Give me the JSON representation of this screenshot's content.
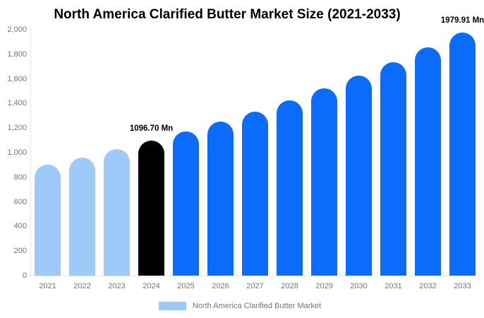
{
  "title": "North America Clarified Butter Market Size (2021-2033)",
  "legend": {
    "label": "North America Clarified Butter Market",
    "swatch_color": "#9ECAF9"
  },
  "colors": {
    "light_blue_bar": "#9ECAF9",
    "highlight_bar": "#000000",
    "blue_bar": "#0B6CFB",
    "axis_line": "#E3E3E3",
    "tick_text": "#757575",
    "data_label_text": "#000000",
    "background": "#FFFFFF"
  },
  "chart_data": {
    "type": "bar",
    "title": "North America Clarified Butter Market Size (2021-2033)",
    "categories": [
      "2021",
      "2022",
      "2023",
      "2024",
      "2025",
      "2026",
      "2027",
      "2028",
      "2029",
      "2030",
      "2031",
      "2032",
      "2033"
    ],
    "values": [
      900.2,
      961.3,
      1026.6,
      1096.7,
      1171.1,
      1250.6,
      1335.5,
      1426.1,
      1522.9,
      1626.2,
      1736.6,
      1854.4,
      1979.91
    ],
    "unit": "Mn",
    "bar_colors": [
      "#9ECAF9",
      "#9ECAF9",
      "#9ECAF9",
      "#000000",
      "#0B6CFB",
      "#0B6CFB",
      "#0B6CFB",
      "#0B6CFB",
      "#0B6CFB",
      "#0B6CFB",
      "#0B6CFB",
      "#0B6CFB",
      "#0B6CFB"
    ],
    "data_labels": {
      "2024": "1096.70 Mn",
      "2033": "1979.91 Mn"
    },
    "xlabel": "",
    "ylabel": "",
    "ylim": [
      0,
      2000
    ],
    "yticks": [
      {
        "value": 0,
        "label": "0"
      },
      {
        "value": 200,
        "label": "200"
      },
      {
        "value": 400,
        "label": "400"
      },
      {
        "value": 600,
        "label": "600"
      },
      {
        "value": 800,
        "label": "800"
      },
      {
        "value": 1000,
        "label": "1,000"
      },
      {
        "value": 1200,
        "label": "1,200"
      },
      {
        "value": 1400,
        "label": "1,400"
      },
      {
        "value": 1600,
        "label": "1,600"
      },
      {
        "value": 1800,
        "label": "1,800"
      },
      {
        "value": 2000,
        "label": "2,000"
      }
    ],
    "grid": false,
    "legend_position": "bottom",
    "legend_entries": [
      "North America Clarified Butter Market"
    ]
  }
}
